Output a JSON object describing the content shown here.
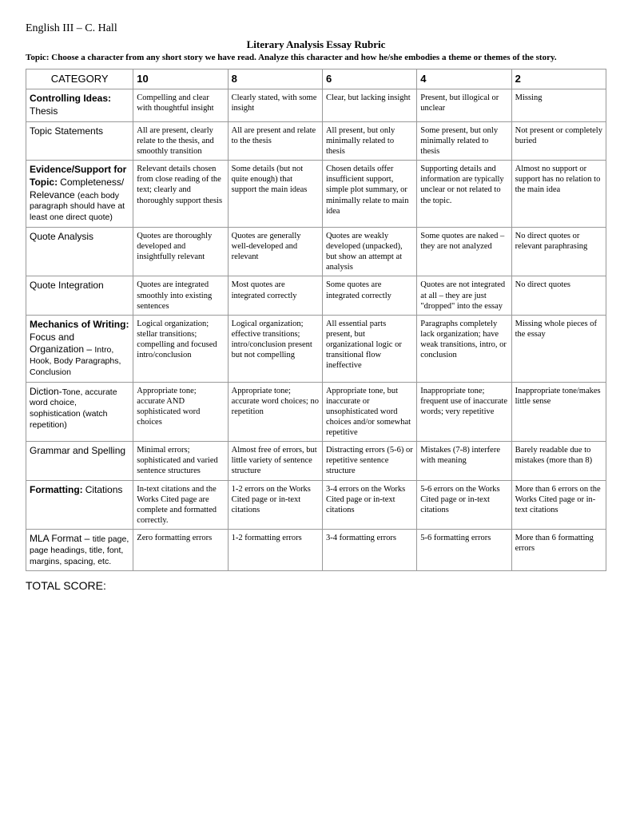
{
  "course": "English III – C. Hall",
  "title": "Literary Analysis Essay Rubric",
  "topic_label": "Topic:  ",
  "topic_text": "Choose a character from any short story we have read.  Analyze this character and how he/she embodies a theme or themes of the story.",
  "headers": {
    "category": "CATEGORY",
    "s10": "10",
    "s8": "8",
    "s6": "6",
    "s4": "4",
    "s2": "2"
  },
  "rows": [
    {
      "cat_bold": "Controlling Ideas:",
      "cat_norm": "Thesis",
      "cat_sub": "",
      "c10": "Compelling and clear with thoughtful insight",
      "c8": "Clearly stated, with some insight",
      "c6": "Clear, but lacking insight",
      "c4": "Present, but illogical or unclear",
      "c2": "Missing"
    },
    {
      "cat_bold": "",
      "cat_norm": "Topic Statements",
      "cat_sub": "",
      "c10": "All are present, clearly relate to the thesis, and smoothly transition",
      "c8": "All are present and relate to the thesis",
      "c6": "All present, but only minimally related to thesis",
      "c4": "Some present, but only minimally related to thesis",
      "c2": "Not present or completely buried"
    },
    {
      "cat_bold": "Evidence/Support for Topic:",
      "cat_norm": "Completeness/ Relevance ",
      "cat_sub": "(each body paragraph should have at least one direct quote)",
      "c10": "Relevant details chosen from close reading of the text; clearly and thoroughly support thesis",
      "c8": "Some details (but not quite enough) that support the main ideas",
      "c6": "Chosen details offer insufficient support, simple plot summary, or minimally relate to main idea",
      "c4": "Supporting details and information are typically unclear or not related to the topic.",
      "c2": "Almost no support or support has no relation to the main idea"
    },
    {
      "cat_bold": "",
      "cat_norm": "Quote Analysis",
      "cat_sub": "",
      "c10": "Quotes are thoroughly developed and insightfully relevant",
      "c8": "Quotes are generally well-developed and relevant",
      "c6": "Quotes are weakly developed (unpacked), but show an attempt at analysis",
      "c4": "Some quotes are naked – they are not analyzed",
      "c2": "No direct quotes or relevant paraphrasing"
    },
    {
      "cat_bold": "",
      "cat_norm": "Quote Integration",
      "cat_sub": "",
      "c10": "Quotes are integrated smoothly into existing sentences",
      "c8": "Most quotes are integrated correctly",
      "c6": "Some quotes are integrated correctly",
      "c4": "Quotes are not integrated at all – they are just \"dropped\" into the essay",
      "c2": "No direct quotes"
    },
    {
      "cat_bold": "Mechanics of Writing:",
      "cat_norm": "Focus and Organization – ",
      "cat_sub": "Intro, Hook, Body Paragraphs, Conclusion",
      "c10": "Logical organization; stellar transitions; compelling and focused intro/conclusion",
      "c8": "Logical organization; effective transitions; intro/conclusion present but not compelling",
      "c6": "All essential parts present, but organizational logic or transitional flow ineffective",
      "c4": "Paragraphs completely lack organization; have weak transitions, intro, or conclusion",
      "c2": "Missing whole pieces of the essay"
    },
    {
      "cat_bold": "",
      "cat_norm": "Diction-",
      "cat_sub": "Tone, accurate word choice, sophistication (watch repetition)",
      "c10": "Appropriate tone; accurate AND sophisticated word choices",
      "c8": "Appropriate tone; accurate word choices; no repetition",
      "c6": "Appropriate tone, but inaccurate or unsophisticated word choices and/or somewhat repetitive",
      "c4": "Inappropriate tone; frequent use of inaccurate words; very repetitive",
      "c2": "Inappropriate tone/makes little sense"
    },
    {
      "cat_bold": "",
      "cat_norm": "Grammar and Spelling",
      "cat_sub": "",
      "c10": "Minimal errors; sophisticated and varied sentence structures",
      "c8": "Almost free of errors, but little variety of sentence structure",
      "c6": "Distracting errors (5-6) or repetitive sentence structure",
      "c4": "Mistakes (7-8) interfere with meaning",
      "c2": "Barely readable due to mistakes (more than 8)"
    },
    {
      "cat_bold": "Formatting:",
      "cat_norm": "Citations",
      "cat_sub": "",
      "c10": "In-text citations and the Works Cited page are complete and formatted correctly.",
      "c8": "1-2 errors on the Works Cited page or in-text citations",
      "c6": "3-4 errors on the Works Cited page or in-text citations",
      "c4": "5-6 errors on the Works Cited page or in-text citations",
      "c2": "More than 6 errors on the Works Cited page or in-text citations"
    },
    {
      "cat_bold": "",
      "cat_norm": "MLA Format – ",
      "cat_sub": "title page, page headings, title, font, margins, spacing, etc.",
      "c10": "Zero formatting errors",
      "c8": "1-2 formatting errors",
      "c6": "3-4 formatting errors",
      "c4": "5-6 formatting errors",
      "c2": "More than 6 formatting errors"
    }
  ],
  "total": "TOTAL SCORE:"
}
